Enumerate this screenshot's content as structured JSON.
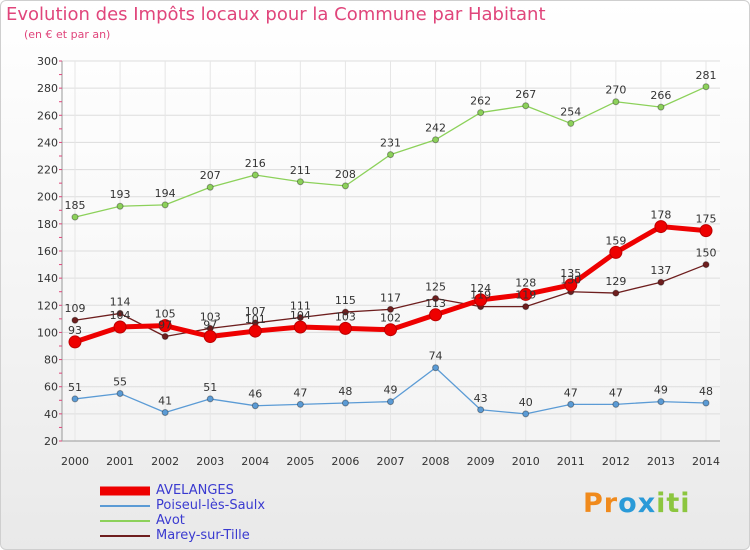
{
  "title": "Evolution des Impôts locaux pour la Commune par Habitant",
  "subtitle": "(en € et par an)",
  "logo": {
    "text": "Proxiti",
    "letters": [
      "P",
      "r",
      "o",
      "x",
      "i",
      "t",
      "i"
    ],
    "colors": [
      "#f08a1c",
      "#f08a1c",
      "#2a9ad8",
      "#2a9ad8",
      "#8cc63f",
      "#8cc63f",
      "#8cc63f"
    ]
  },
  "chart_data": {
    "type": "line",
    "title": "Evolution des Impôts locaux pour la Commune par Habitant",
    "xlabel": "",
    "ylabel": "",
    "ylim": [
      20,
      300
    ],
    "yticks": [
      20,
      40,
      60,
      80,
      100,
      120,
      140,
      160,
      180,
      200,
      220,
      240,
      260,
      280,
      300
    ],
    "grid": true,
    "legend_placement": "bottom-left",
    "x": [
      "2000",
      "2001",
      "2002",
      "2003",
      "2004",
      "2005",
      "2006",
      "2007",
      "2008",
      "2009",
      "2010",
      "2011",
      "2012",
      "2013",
      "2014"
    ],
    "series": [
      {
        "name": "Marey-sur-Tille",
        "color": "#6e1e1e",
        "values": [
          109,
          114,
          97,
          103,
          107,
          111,
          115,
          117,
          125,
          119,
          119,
          130,
          129,
          137,
          150
        ]
      },
      {
        "name": "Avot",
        "color": "#8cd15a",
        "values": [
          185,
          193,
          194,
          207,
          216,
          211,
          208,
          231,
          242,
          262,
          267,
          254,
          270,
          266,
          281
        ]
      },
      {
        "name": "Poiseul-lès-Saulx",
        "color": "#5b9bd5",
        "values": [
          51,
          55,
          41,
          51,
          46,
          47,
          48,
          49,
          74,
          43,
          40,
          47,
          47,
          49,
          48
        ]
      },
      {
        "name": "AVELANGES",
        "color": "#ee0000",
        "values": [
          93,
          104,
          105,
          97,
          101,
          104,
          103,
          102,
          113,
          124,
          128,
          135,
          159,
          178,
          175
        ]
      }
    ],
    "legend_order": [
      "AVELANGES",
      "Poiseul-lès-Saulx",
      "Avot",
      "Marey-sur-Tille"
    ]
  }
}
